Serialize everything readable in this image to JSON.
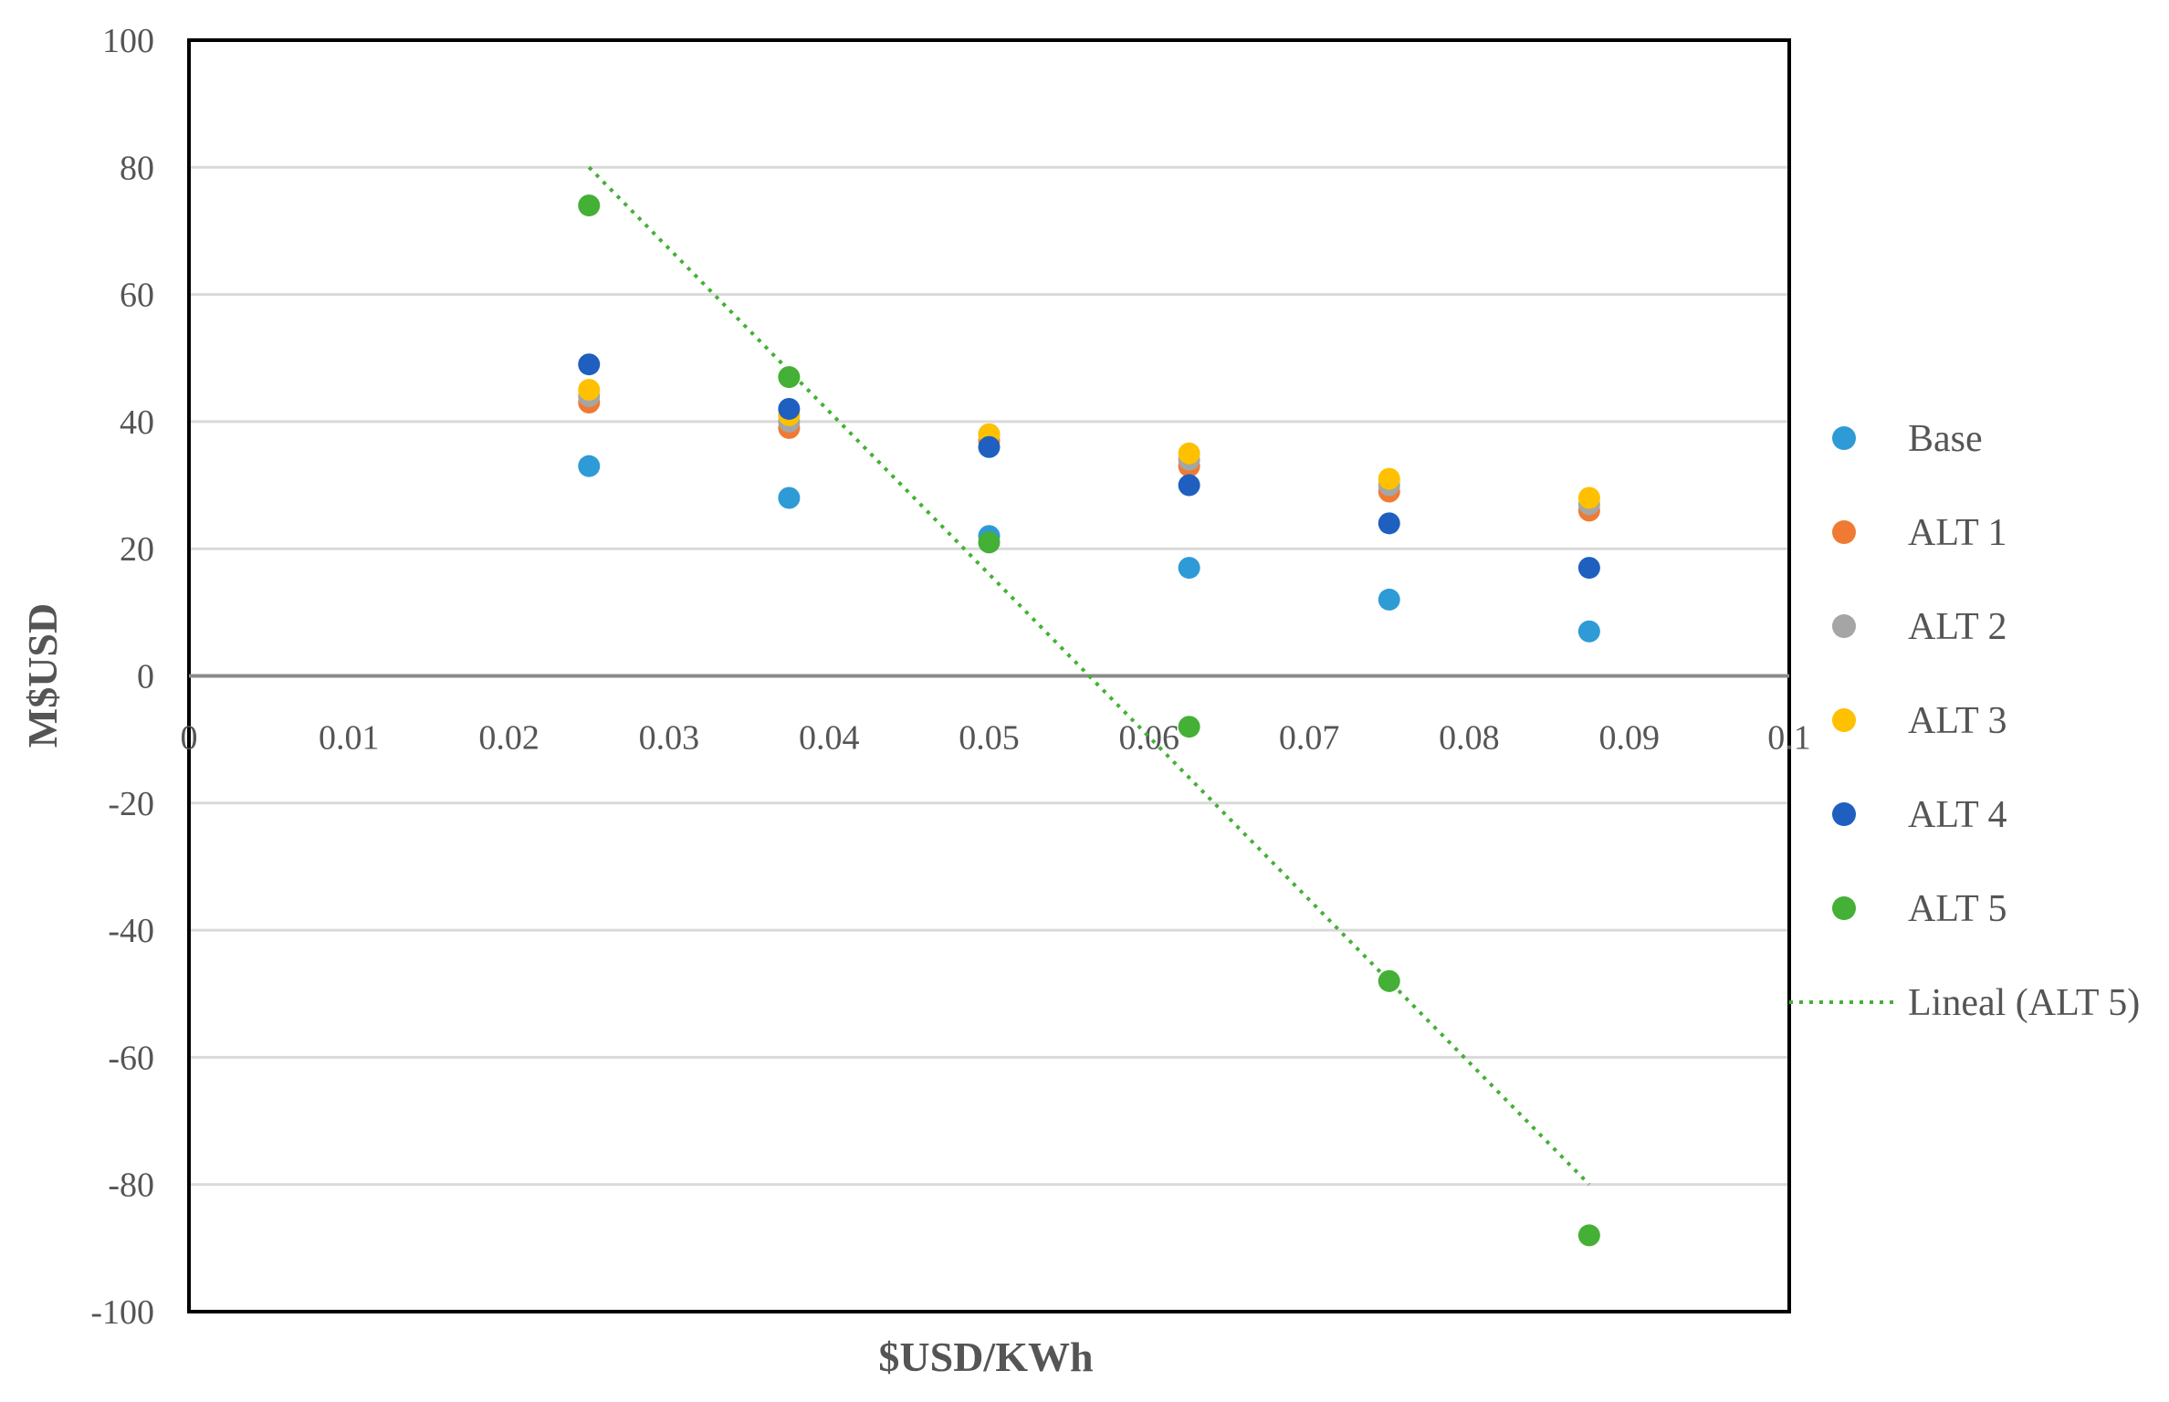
{
  "chart_data": {
    "type": "scatter",
    "title": "",
    "xlabel": "$USD/KWh",
    "ylabel": "M$USD",
    "xlim": [
      0,
      0.1
    ],
    "ylim": [
      -100,
      100
    ],
    "x_ticks": [
      "0",
      "0.01",
      "0.02",
      "0.03",
      "0.04",
      "0.05",
      "0.06",
      "0.07",
      "0.08",
      "0.09",
      "0.1"
    ],
    "y_ticks": [
      "100",
      "80",
      "60",
      "40",
      "20",
      "0",
      "-20",
      "-40",
      "-60",
      "-80",
      "-100"
    ],
    "grid": "horizontal",
    "legend_position": "right",
    "x": [
      0.025,
      0.0375,
      0.05,
      0.0625,
      0.075,
      0.0875
    ],
    "series": [
      {
        "name": "Base",
        "color": "#2E9BD6",
        "values": [
          33,
          28,
          22,
          17,
          12,
          7
        ]
      },
      {
        "name": "ALT 1",
        "color": "#F07A33",
        "values": [
          43,
          39,
          37,
          33,
          29,
          26
        ]
      },
      {
        "name": "ALT 2",
        "color": "#A5A5A5",
        "values": [
          44,
          40,
          38,
          34,
          30,
          27
        ]
      },
      {
        "name": "ALT 3",
        "color": "#FFC000",
        "values": [
          45,
          41,
          38,
          35,
          31,
          28
        ]
      },
      {
        "name": "ALT 4",
        "color": "#1F5FC0",
        "values": [
          49,
          42,
          36,
          30,
          24,
          17
        ]
      },
      {
        "name": "ALT 5",
        "color": "#44B035",
        "values": [
          74,
          47,
          21,
          -8,
          -48,
          -88
        ]
      }
    ],
    "trendline": {
      "name": "Lineal (ALT 5)",
      "color": "#44B035",
      "style": "dotted",
      "x": [
        0.025,
        0.0875
      ],
      "y": [
        80,
        -80
      ]
    }
  }
}
